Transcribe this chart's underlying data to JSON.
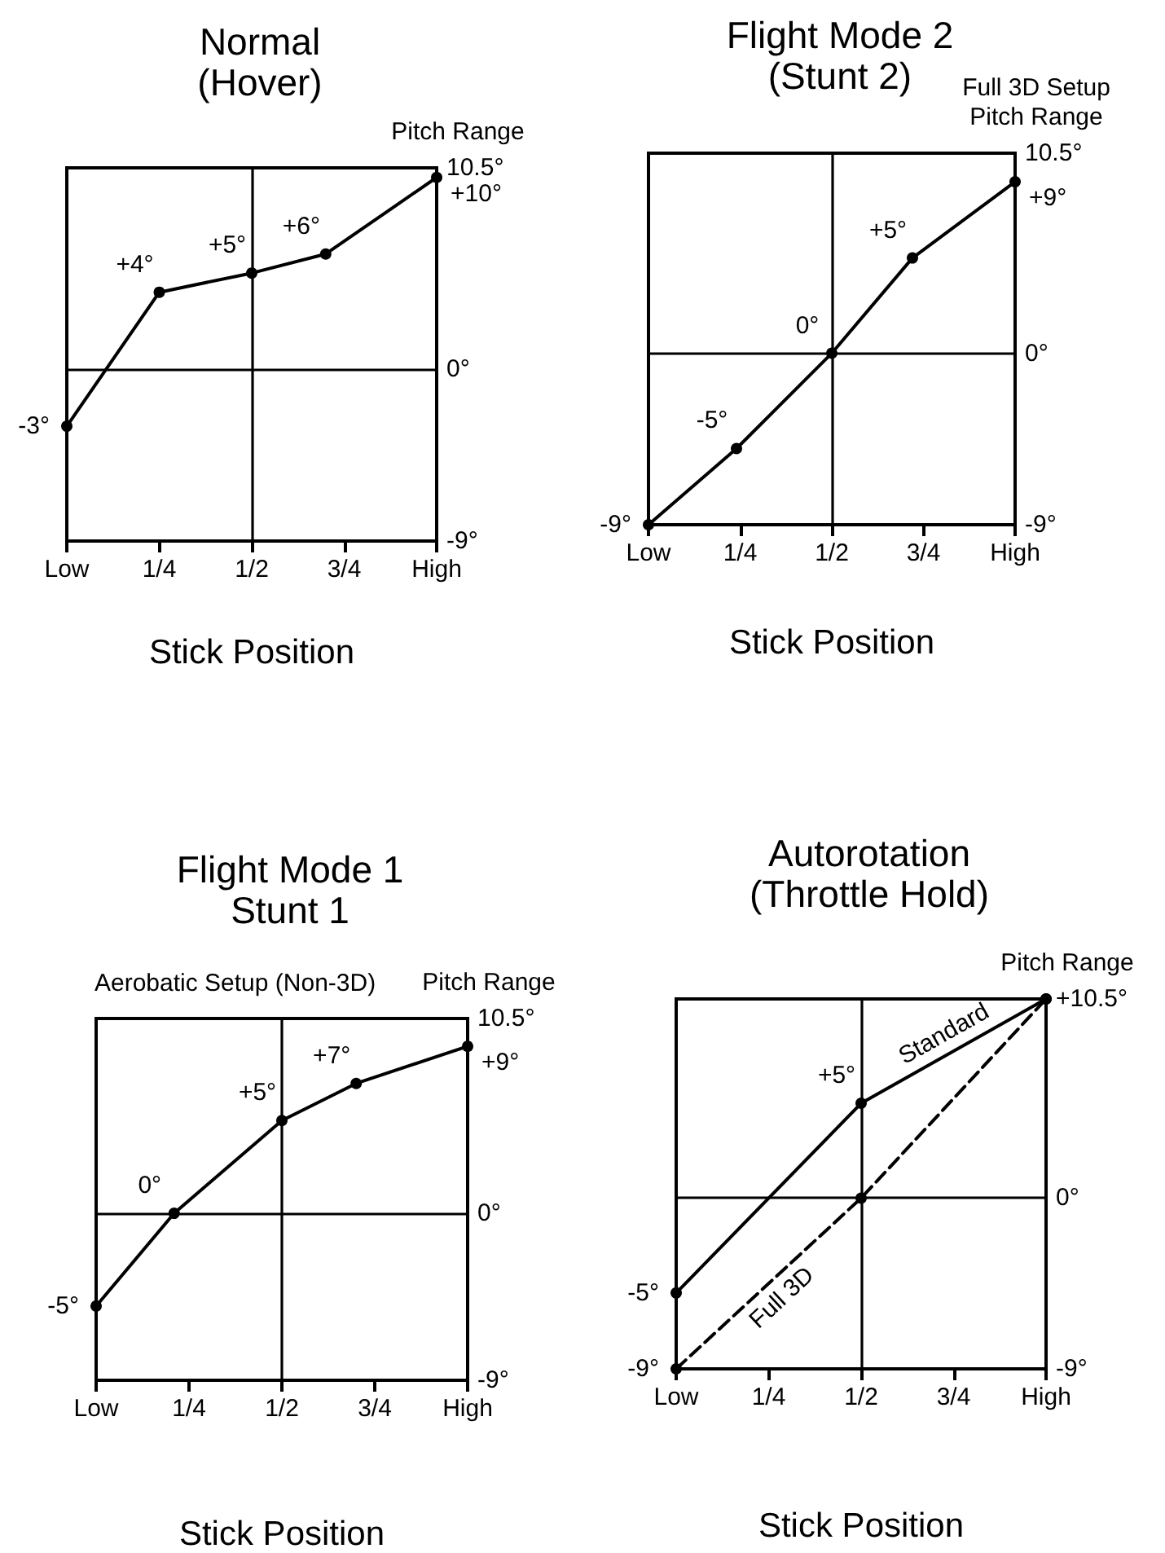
{
  "chart_data": [
    {
      "type": "line",
      "title": "Normal\n(Hover)",
      "xlabel": "Stick Position",
      "ylabel": "Pitch Range",
      "x": [
        0,
        0.25,
        0.5,
        0.7,
        1
      ],
      "series": [
        {
          "color": "#000000",
          "values": [
            -3,
            4,
            5,
            6,
            10
          ],
          "value_labels": [
            "-3°",
            "+4°",
            "+5°",
            "+6°",
            "+10°"
          ]
        }
      ],
      "xlim": [
        0,
        1
      ],
      "ylim": [
        -9,
        10.5
      ],
      "xticks": [
        {
          "value": 0,
          "label": "Low"
        },
        {
          "value": 0.25,
          "label": "1/4"
        },
        {
          "value": 0.5,
          "label": "1/2"
        },
        {
          "value": 0.75,
          "label": "3/4"
        },
        {
          "value": 1,
          "label": "High"
        }
      ],
      "yticks": [
        {
          "value": -9,
          "label": "-9°"
        },
        {
          "value": 0,
          "label": "0°"
        },
        {
          "value": 10.5,
          "label": "10.5°"
        }
      ],
      "ref_lines": [
        {
          "axis": "x",
          "value": 0.5
        },
        {
          "axis": "y",
          "value": 0
        }
      ],
      "marker": "circle"
    },
    {
      "type": "line",
      "title": "Flight Mode 2\n(Stunt 2)",
      "xlabel": "Stick Position",
      "ylabel": "Full 3D Setup\nPitch Range",
      "x": [
        0,
        0.24,
        0.5,
        0.72,
        1
      ],
      "series": [
        {
          "color": "#000000",
          "values": [
            -9,
            -5,
            0,
            5,
            9
          ],
          "value_labels": [
            "-9°",
            "-5°",
            "0°",
            "+5°",
            "+9°"
          ]
        }
      ],
      "xlim": [
        0,
        1
      ],
      "ylim": [
        -9,
        10.5
      ],
      "xticks": [
        {
          "value": 0,
          "label": "Low"
        },
        {
          "value": 0.25,
          "label": "1/4"
        },
        {
          "value": 0.5,
          "label": "1/2"
        },
        {
          "value": 0.75,
          "label": "3/4"
        },
        {
          "value": 1,
          "label": "High"
        }
      ],
      "yticks": [
        {
          "value": -9,
          "label": "-9°"
        },
        {
          "value": 0,
          "label": "0°"
        },
        {
          "value": 10.5,
          "label": "10.5°"
        }
      ],
      "ref_lines": [
        {
          "axis": "x",
          "value": 0.5
        },
        {
          "axis": "y",
          "value": 0
        }
      ],
      "marker": "circle"
    },
    {
      "type": "line",
      "title": "Flight Mode 1\nStunt 1",
      "subtitle": "Aerobatic Setup (Non-3D)",
      "xlabel": "Stick Position",
      "ylabel": "Pitch Range",
      "x": [
        0,
        0.21,
        0.5,
        0.7,
        1
      ],
      "series": [
        {
          "color": "#000000",
          "values": [
            -5,
            0,
            5,
            7,
            9
          ],
          "value_labels": [
            "-5°",
            "0°",
            "+5°",
            "+7°",
            "+9°"
          ]
        }
      ],
      "xlim": [
        0,
        1
      ],
      "ylim": [
        -9,
        10.5
      ],
      "xticks": [
        {
          "value": 0,
          "label": "Low"
        },
        {
          "value": 0.25,
          "label": "1/4"
        },
        {
          "value": 0.5,
          "label": "1/2"
        },
        {
          "value": 0.75,
          "label": "3/4"
        },
        {
          "value": 1,
          "label": "High"
        }
      ],
      "yticks": [
        {
          "value": -9,
          "label": "-9°"
        },
        {
          "value": 0,
          "label": "0°"
        },
        {
          "value": 10.5,
          "label": "10.5°"
        }
      ],
      "ref_lines": [
        {
          "axis": "x",
          "value": 0.5
        },
        {
          "axis": "y",
          "value": 0
        }
      ],
      "marker": "circle"
    },
    {
      "type": "line",
      "title": "Autorotation\n(Throttle Hold)",
      "xlabel": "Stick Position",
      "ylabel": "Pitch Range",
      "x": [
        0,
        0.5,
        1
      ],
      "series": [
        {
          "name": "Standard",
          "color": "#000000",
          "values": [
            -5,
            5,
            10.5
          ],
          "value_labels": [
            "-5°",
            "+5°",
            null
          ],
          "line_style": "solid"
        },
        {
          "name": "Full 3D",
          "color": "#000000",
          "values": [
            -9,
            0,
            10.5
          ],
          "value_labels": [
            "-9°",
            null,
            null
          ],
          "line_style": "dashed"
        }
      ],
      "xlim": [
        0,
        1
      ],
      "ylim": [
        -9,
        10.5
      ],
      "xticks": [
        {
          "value": 0,
          "label": "Low"
        },
        {
          "value": 0.25,
          "label": "1/4"
        },
        {
          "value": 0.5,
          "label": "1/2"
        },
        {
          "value": 0.75,
          "label": "3/4"
        },
        {
          "value": 1,
          "label": "High"
        }
      ],
      "yticks": [
        {
          "value": -9,
          "label": "-9°"
        },
        {
          "value": 0,
          "label": "0°"
        },
        {
          "value": 10.5,
          "label": "+10.5°"
        }
      ],
      "ref_lines": [
        {
          "axis": "x",
          "value": 0.5
        },
        {
          "axis": "y",
          "value": 0
        }
      ],
      "marker": "circle"
    }
  ]
}
